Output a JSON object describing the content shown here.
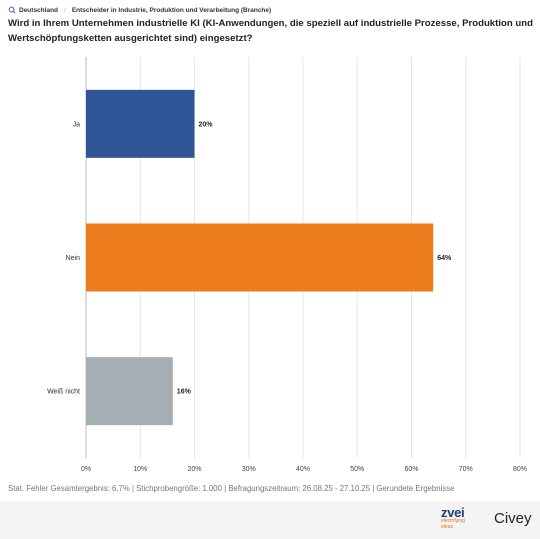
{
  "breadcrumb": {
    "country": "Deutschland",
    "segment": "Entscheider in Industrie, Produktion und Verarbeitung (Branche)"
  },
  "question": "Wird in Ihrem Unternehmen industrielle KI (KI-Anwendungen, die speziell auf industrielle Prozesse, Produktion und Wertschöpfungsketten ausgerichtet sind) eingesetzt?",
  "chart_data": {
    "type": "bar",
    "orientation": "horizontal",
    "categories": [
      "Ja",
      "Nein",
      "Weiß nicht"
    ],
    "values": [
      20,
      64,
      16
    ],
    "value_labels": [
      "20%",
      "64%",
      "16%"
    ],
    "colors": [
      "#2f5596",
      "#ed7d1c",
      "#a5aeb3"
    ],
    "xlim": [
      0,
      80
    ],
    "x_ticks": [
      "0%",
      "10%",
      "20%",
      "30%",
      "40%",
      "50%",
      "60%",
      "70%",
      "80%"
    ],
    "grid": true
  },
  "footnote": "Stat. Fehler Gesamtergebnis: 6,7% | Stichprobengröße: 1.000 | Befragungszeitraum: 26.08.25 - 27.10.25 | Gerundete Ergebnisse",
  "logos": {
    "zvei_word": "zvei",
    "zvei_tagline_1": "electrifying",
    "zvei_tagline_2": "ideas",
    "civey": "Civey"
  }
}
